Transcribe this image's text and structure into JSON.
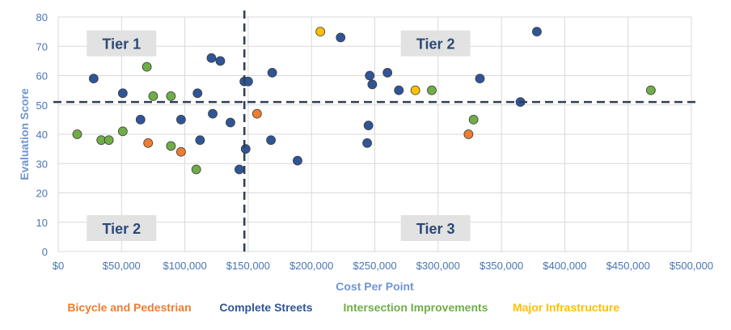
{
  "chart_data": {
    "type": "scatter",
    "title": "",
    "xlabel": "Cost Per Point",
    "ylabel": "Evaluation Score",
    "xlim": [
      0,
      500000
    ],
    "ylim": [
      0,
      80
    ],
    "x_ticks": [
      0,
      50000,
      100000,
      150000,
      200000,
      250000,
      300000,
      350000,
      400000,
      450000,
      500000
    ],
    "x_tick_labels": [
      "$0",
      "$50,000",
      "$100,000",
      "$150,000",
      "$200,000",
      "$250,000",
      "$300,000",
      "$350,000",
      "$400,000",
      "$450,000",
      "$500,000"
    ],
    "y_ticks": [
      0,
      10,
      20,
      30,
      40,
      50,
      60,
      70,
      80
    ],
    "y_tick_labels": [
      "0",
      "10",
      "20",
      "30",
      "40",
      "50",
      "60",
      "70",
      "80"
    ],
    "grid": true,
    "legend_position": "bottom",
    "thresholds": {
      "x": 147000,
      "y": 51
    },
    "tier_labels": [
      {
        "text": "Tier 1",
        "x": 50000,
        "y": 71
      },
      {
        "text": "Tier 2",
        "x": 298000,
        "y": 71
      },
      {
        "text": "Tier 2",
        "x": 50000,
        "y": 8
      },
      {
        "text": "Tier 3",
        "x": 298000,
        "y": 8
      }
    ],
    "series": [
      {
        "name": "Bicycle and Pedestrian",
        "color": "#ed7d31",
        "points": [
          [
            71000,
            37
          ],
          [
            97000,
            34
          ],
          [
            157000,
            47
          ],
          [
            324000,
            40
          ]
        ]
      },
      {
        "name": "Complete Streets",
        "color": "#2f5597",
        "points": [
          [
            28000,
            59
          ],
          [
            51000,
            54
          ],
          [
            65000,
            45
          ],
          [
            97000,
            45
          ],
          [
            110000,
            54
          ],
          [
            112000,
            38
          ],
          [
            121000,
            66
          ],
          [
            122000,
            47
          ],
          [
            128000,
            65
          ],
          [
            136000,
            44
          ],
          [
            143000,
            28
          ],
          [
            147000,
            58
          ],
          [
            150000,
            58
          ],
          [
            148000,
            35
          ],
          [
            169000,
            61
          ],
          [
            168000,
            38
          ],
          [
            189000,
            31
          ],
          [
            223000,
            73
          ],
          [
            245000,
            43
          ],
          [
            244000,
            37
          ],
          [
            246000,
            60
          ],
          [
            248000,
            57
          ],
          [
            260000,
            61
          ],
          [
            269000,
            55
          ],
          [
            333000,
            59
          ],
          [
            365000,
            51
          ],
          [
            378000,
            75
          ]
        ]
      },
      {
        "name": "Intersection Improvements",
        "color": "#70ad47",
        "points": [
          [
            15000,
            40
          ],
          [
            34000,
            38
          ],
          [
            40000,
            38
          ],
          [
            51000,
            41
          ],
          [
            70000,
            63
          ],
          [
            75000,
            53
          ],
          [
            89000,
            53
          ],
          [
            89000,
            36
          ],
          [
            109000,
            28
          ],
          [
            295000,
            55
          ],
          [
            328000,
            45
          ],
          [
            468000,
            55
          ]
        ]
      },
      {
        "name": "Major Infrastructure",
        "color": "#ffc000",
        "points": [
          [
            207000,
            75
          ],
          [
            282000,
            55
          ]
        ]
      }
    ]
  }
}
